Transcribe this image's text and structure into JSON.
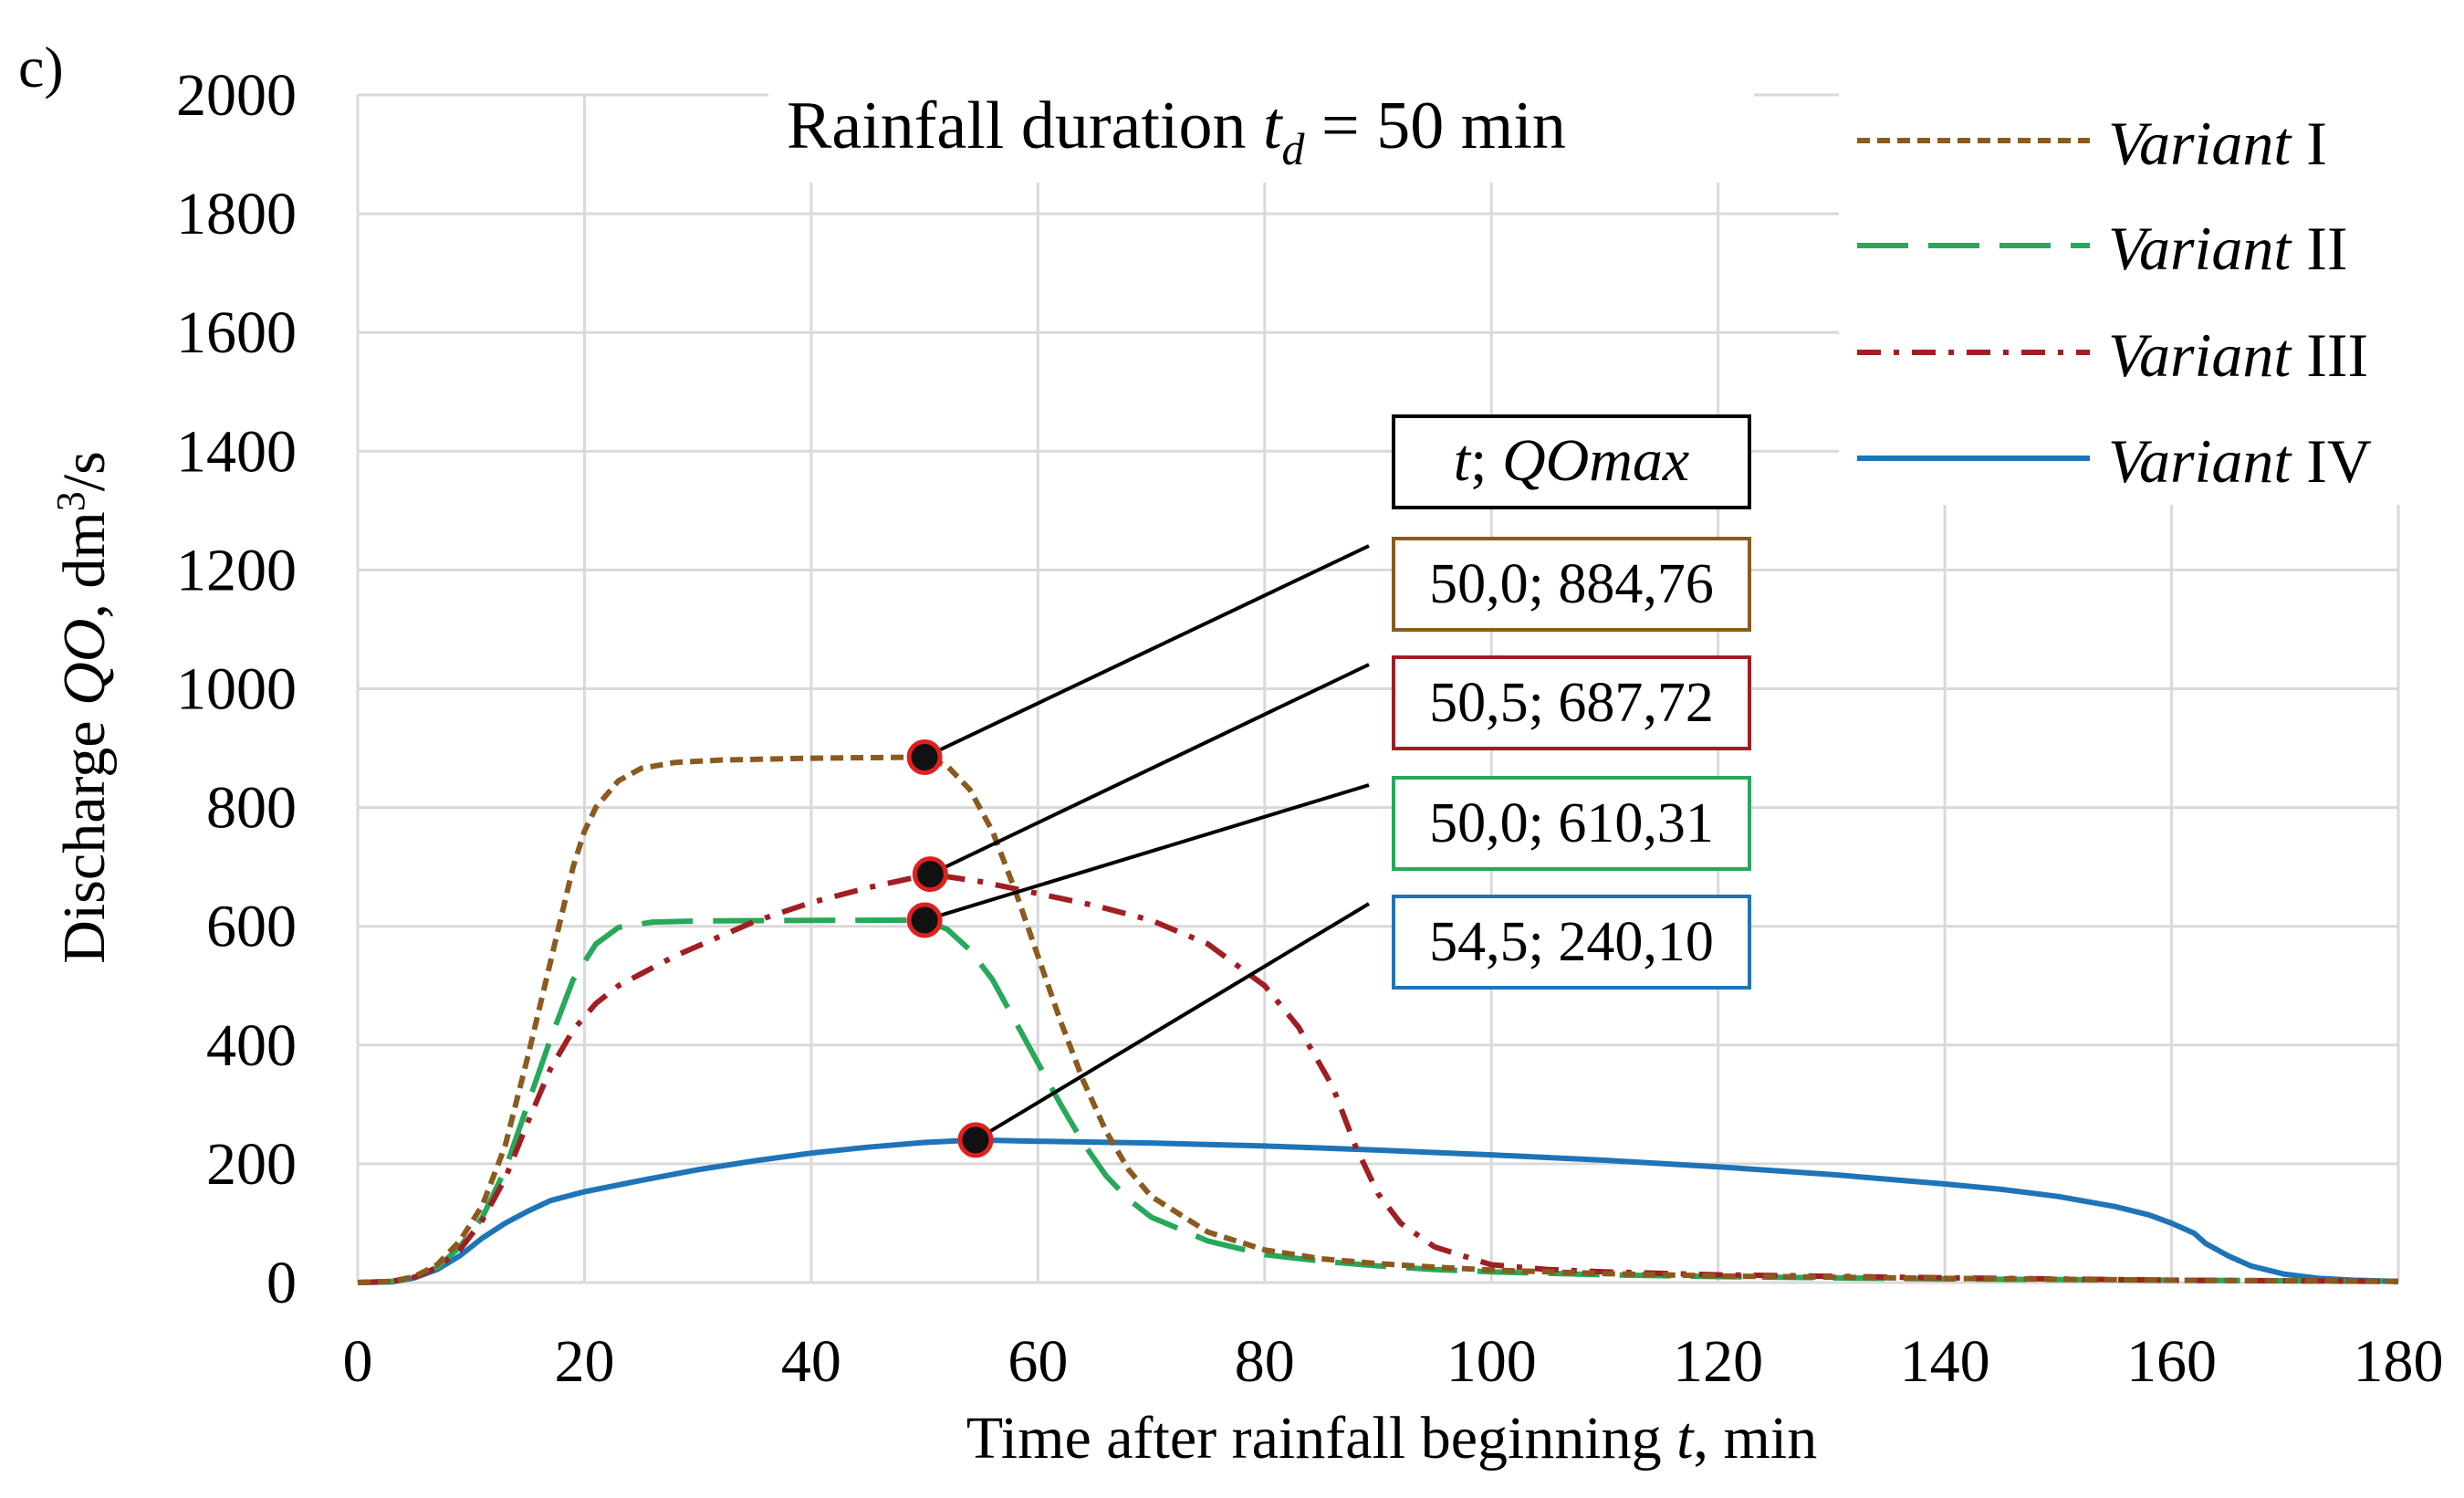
{
  "panel_label": "c)",
  "colors": {
    "variant_I": "#8B5A1E",
    "variant_II": "#27A85A",
    "variant_III": "#A11E22",
    "variant_IV": "#1F74B8",
    "grid": "#D9D9D9",
    "marker_fill": "#111111",
    "marker_edge": "#E02020",
    "leader": "#000000"
  },
  "chart_data": {
    "type": "line",
    "title_prefix": "Rainfall duration ",
    "title_var": "t",
    "title_sub": "d",
    "title_suffix": " = 50 min",
    "xlabel_prefix": "Time after rainfall beginning ",
    "xlabel_var": "t",
    "xlabel_suffix": ", min",
    "ylabel_prefix": "Discharge ",
    "ylabel_var": "QO",
    "ylabel_mid": ", dm",
    "ylabel_sup": "3",
    "ylabel_suffix": "/s",
    "xlim": [
      0,
      180
    ],
    "ylim": [
      0,
      2000
    ],
    "xticks": [
      0,
      20,
      40,
      60,
      80,
      100,
      120,
      140,
      160,
      180
    ],
    "yticks": [
      0,
      200,
      400,
      600,
      800,
      1000,
      1200,
      1400,
      1600,
      1800,
      2000
    ],
    "grid": true,
    "legend_position": "top-right",
    "series": [
      {
        "key": "variant_I",
        "name_italic": "Variant",
        "name_roman": "I",
        "dash": "dotted",
        "points": [
          [
            0,
            0
          ],
          [
            3,
            2
          ],
          [
            5,
            10
          ],
          [
            7,
            30
          ],
          [
            9,
            70
          ],
          [
            11,
            130
          ],
          [
            13,
            230
          ],
          [
            15,
            380
          ],
          [
            17,
            540
          ],
          [
            19,
            700
          ],
          [
            20,
            760
          ],
          [
            21,
            800
          ],
          [
            23,
            845
          ],
          [
            25,
            866
          ],
          [
            28,
            876
          ],
          [
            32,
            880
          ],
          [
            40,
            883
          ],
          [
            45,
            884
          ],
          [
            50,
            884.76
          ],
          [
            52,
            870
          ],
          [
            54,
            830
          ],
          [
            56,
            760
          ],
          [
            58,
            660
          ],
          [
            60,
            550
          ],
          [
            62,
            440
          ],
          [
            64,
            340
          ],
          [
            66,
            255
          ],
          [
            68,
            190
          ],
          [
            70,
            145
          ],
          [
            75,
            85
          ],
          [
            80,
            55
          ],
          [
            85,
            40
          ],
          [
            90,
            32
          ],
          [
            95,
            26
          ],
          [
            100,
            21
          ],
          [
            110,
            15
          ],
          [
            120,
            11
          ],
          [
            140,
            7
          ],
          [
            160,
            4
          ],
          [
            180,
            2
          ]
        ]
      },
      {
        "key": "variant_II",
        "name_italic": "Variant",
        "name_roman": "II",
        "dash": "long-dash",
        "points": [
          [
            0,
            0
          ],
          [
            3,
            2
          ],
          [
            5,
            9
          ],
          [
            7,
            25
          ],
          [
            9,
            60
          ],
          [
            11,
            110
          ],
          [
            13,
            190
          ],
          [
            15,
            300
          ],
          [
            17,
            410
          ],
          [
            19,
            510
          ],
          [
            21,
            570
          ],
          [
            23,
            598
          ],
          [
            26,
            607
          ],
          [
            30,
            609
          ],
          [
            40,
            610
          ],
          [
            50,
            610.31
          ],
          [
            52,
            595
          ],
          [
            54,
            560
          ],
          [
            56,
            510
          ],
          [
            58,
            440
          ],
          [
            60,
            370
          ],
          [
            62,
            300
          ],
          [
            64,
            235
          ],
          [
            66,
            180
          ],
          [
            68,
            140
          ],
          [
            70,
            110
          ],
          [
            75,
            70
          ],
          [
            80,
            47
          ],
          [
            85,
            36
          ],
          [
            90,
            28
          ],
          [
            95,
            22
          ],
          [
            100,
            18
          ],
          [
            110,
            13
          ],
          [
            120,
            10
          ],
          [
            140,
            6
          ],
          [
            160,
            4
          ],
          [
            180,
            2
          ]
        ]
      },
      {
        "key": "variant_III",
        "name_italic": "Variant",
        "name_roman": "III",
        "dash": "dash-dot",
        "points": [
          [
            0,
            0
          ],
          [
            3,
            2
          ],
          [
            5,
            9
          ],
          [
            7,
            25
          ],
          [
            9,
            55
          ],
          [
            11,
            105
          ],
          [
            13,
            175
          ],
          [
            15,
            270
          ],
          [
            17,
            360
          ],
          [
            19,
            425
          ],
          [
            21,
            470
          ],
          [
            23,
            500
          ],
          [
            25,
            520
          ],
          [
            28,
            550
          ],
          [
            31,
            575
          ],
          [
            35,
            608
          ],
          [
            40,
            640
          ],
          [
            45,
            665
          ],
          [
            50.5,
            687.72
          ],
          [
            55,
            675
          ],
          [
            60,
            655
          ],
          [
            65,
            635
          ],
          [
            70,
            610
          ],
          [
            75,
            570
          ],
          [
            80,
            500
          ],
          [
            83,
            430
          ],
          [
            86,
            330
          ],
          [
            88,
            230
          ],
          [
            90,
            150
          ],
          [
            92,
            100
          ],
          [
            95,
            60
          ],
          [
            100,
            30
          ],
          [
            105,
            22
          ],
          [
            110,
            18
          ],
          [
            120,
            13
          ],
          [
            140,
            8
          ],
          [
            160,
            4
          ],
          [
            180,
            2
          ]
        ]
      },
      {
        "key": "variant_IV",
        "name_italic": "Variant",
        "name_roman": "IV",
        "dash": "solid",
        "points": [
          [
            0,
            0
          ],
          [
            3,
            1
          ],
          [
            5,
            8
          ],
          [
            7,
            22
          ],
          [
            9,
            45
          ],
          [
            11,
            75
          ],
          [
            13,
            100
          ],
          [
            15,
            120
          ],
          [
            17,
            138
          ],
          [
            20,
            153
          ],
          [
            25,
            172
          ],
          [
            30,
            190
          ],
          [
            35,
            205
          ],
          [
            40,
            218
          ],
          [
            45,
            228
          ],
          [
            50,
            236
          ],
          [
            54.5,
            240.1
          ],
          [
            60,
            238
          ],
          [
            70,
            235
          ],
          [
            80,
            230
          ],
          [
            90,
            223
          ],
          [
            100,
            215
          ],
          [
            110,
            206
          ],
          [
            120,
            195
          ],
          [
            130,
            182
          ],
          [
            140,
            166
          ],
          [
            145,
            157
          ],
          [
            150,
            145
          ],
          [
            155,
            128
          ],
          [
            158,
            114
          ],
          [
            160,
            100
          ],
          [
            162,
            83
          ],
          [
            163,
            66
          ],
          [
            165,
            45
          ],
          [
            167,
            28
          ],
          [
            170,
            14
          ],
          [
            173,
            7
          ],
          [
            176,
            4
          ],
          [
            180,
            2
          ]
        ]
      }
    ],
    "peaks_header_var": "t",
    "peaks_header_sep": "; ",
    "peaks_header_name": "QOmax",
    "peaks": [
      {
        "series": "variant_I",
        "t": 50.0,
        "q": 884.76,
        "label": "50,0; 884,76"
      },
      {
        "series": "variant_III",
        "t": 50.5,
        "q": 687.72,
        "label": "50,5; 687,72"
      },
      {
        "series": "variant_II",
        "t": 50.0,
        "q": 610.31,
        "label": "50,0; 610,31"
      },
      {
        "series": "variant_IV",
        "t": 54.5,
        "q": 240.1,
        "label": "54,5; 240,10"
      }
    ]
  }
}
